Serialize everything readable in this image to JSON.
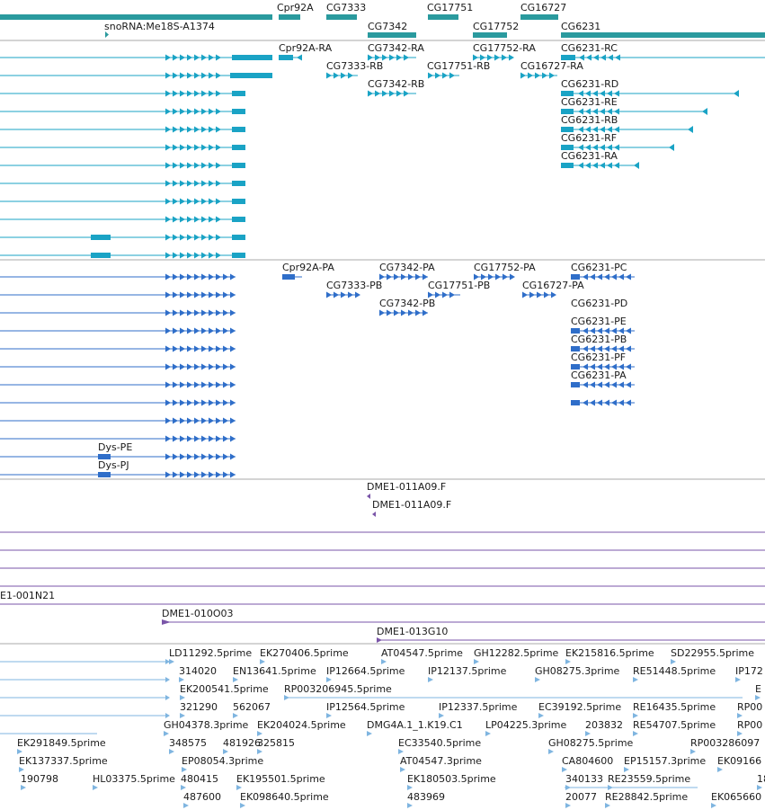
{
  "colors": {
    "gene": "#2a9a9e",
    "mrna": "#1aa3c5",
    "protein": "#2f6ec9",
    "clone": "#7a55a8",
    "est": "#7fb5e0",
    "divider": "#aaaaaa"
  },
  "tracks": {
    "genes": {
      "labels": [
        "Cpr92A",
        "CG7333",
        "CG17751",
        "CG16727",
        "snoRNA:Me18S-A1374",
        "CG7342",
        "CG17752",
        "CG6231"
      ]
    },
    "transcripts": {
      "labels": [
        "Cpr92A-RA",
        "CG7342-RA",
        "CG17752-RA",
        "CG6231-RC",
        "CG7333-RB",
        "CG17751-RB",
        "CG16727-RA",
        "CG7342-RB",
        "CG6231-RD",
        "CG6231-RE",
        "CG6231-RB",
        "CG6231-RF",
        "CG6231-RA"
      ]
    },
    "proteins": {
      "labels": [
        "Cpr92A-PA",
        "CG7342-PA",
        "CG17752-PA",
        "CG6231-PC",
        "CG7333-PB",
        "CG17751-PB",
        "CG16727-PA",
        "CG7342-PB",
        "CG6231-PD",
        "CG6231-PE",
        "CG6231-PB",
        "CG6231-PF",
        "CG6231-PA",
        "Dys-PE",
        "Dys-PJ"
      ]
    },
    "clones": {
      "labels": [
        "DME1-011A09.F",
        "DME1-011A09.F",
        "E1-001N21",
        "DME1-010O03",
        "DME1-013G10"
      ]
    },
    "ests": {
      "labels": [
        "LD11292.5prime",
        "EK270406.5prime",
        "AT04547.5prime",
        "GH12282.5prime",
        "EK215816.5prime",
        "SD22955.5prime",
        "314020",
        "EN13641.5prime",
        "IP12664.5prime",
        "IP12137.5prime",
        "GH08275.3prime",
        "RE51448.5prime",
        "IP172",
        "EK200541.5prime",
        "RP003206945.5prime",
        "E",
        "321290",
        "562067",
        "IP12564.5prime",
        "IP12337.5prime",
        "EC39192.5prime",
        "RE16435.5prime",
        "RP00",
        "GH04378.3prime",
        "EK204024.5prime",
        "DMG4A.1_1.K19.C1",
        "LP04225.3prime",
        "203832",
        "RE54707.5prime",
        "RP00",
        "EK291849.5prime",
        "348575",
        "481926",
        "325815",
        "EC33540.5prime",
        "GH08275.5prime",
        "RP003286097",
        "EK137337.5prime",
        "EP08054.3prime",
        "AT04547.3prime",
        "CA804600",
        "EP15157.3prime",
        "EK09166",
        "190798",
        "HL03375.5prime",
        "480415",
        "EK195501.5prime",
        "EK180503.5prime",
        "340133",
        "RE23559.5prime",
        "18",
        "487600",
        "EK098640.5prime",
        "483969",
        "20077",
        "RE28842.5prime",
        "EK065660"
      ]
    }
  }
}
